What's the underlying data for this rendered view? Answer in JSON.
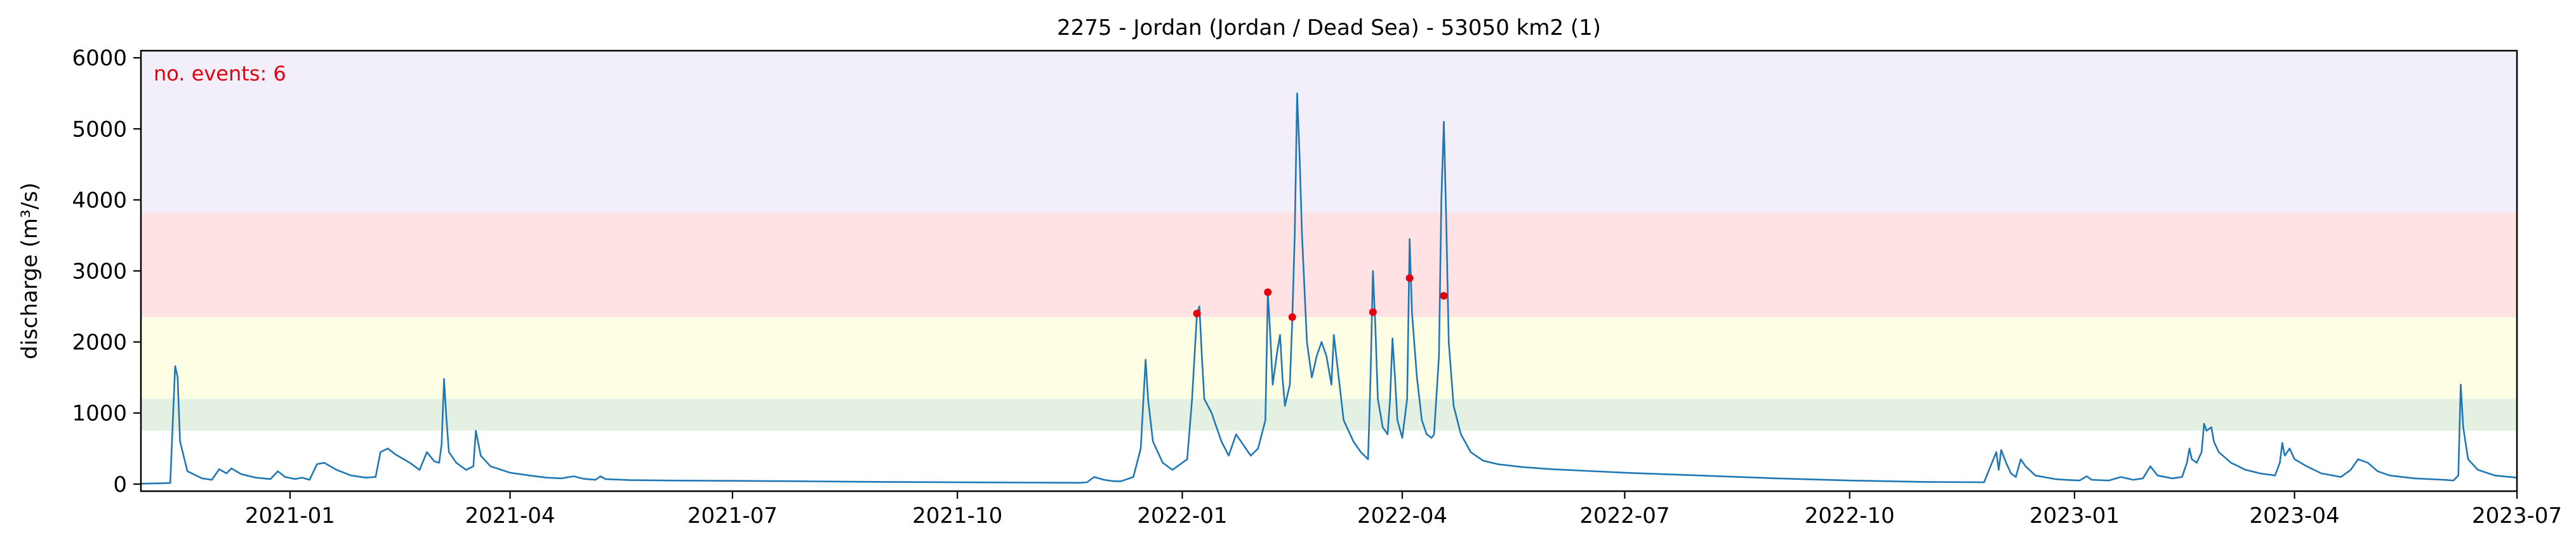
{
  "chart_data": {
    "type": "line",
    "title": "2275 - Jordan (Jordan / Dead Sea) - 53050 km2 (1)",
    "xlabel": "",
    "ylabel": "discharge (m³/s)",
    "annotation": "no. events: 6",
    "xlim": [
      "2020-11-01",
      "2023-07-01"
    ],
    "ylim": [
      -100,
      6100
    ],
    "y_ticks": [
      0,
      1000,
      2000,
      3000,
      4000,
      5000,
      6000
    ],
    "x_ticks": [
      "2021-01",
      "2021-04",
      "2021-07",
      "2021-10",
      "2022-01",
      "2022-04",
      "2022-07",
      "2022-10",
      "2023-01",
      "2023-04",
      "2023-07"
    ],
    "grid": false,
    "legend": "none",
    "threshold_bands": [
      {
        "from": 750,
        "to": 1200,
        "color": "#e4f1e2"
      },
      {
        "from": 1200,
        "to": 2350,
        "color": "#fefee5"
      },
      {
        "from": 2350,
        "to": 3820,
        "color": "#fee2e4"
      },
      {
        "from": 3820,
        "to": 6100,
        "color": "#f2eefa"
      }
    ],
    "series": [
      {
        "color": "#1f77b4",
        "points": [
          [
            "2020-11-01",
            5
          ],
          [
            "2020-11-08",
            10
          ],
          [
            "2020-11-13",
            15
          ],
          [
            "2020-11-15",
            1660
          ],
          [
            "2020-11-16",
            1500
          ],
          [
            "2020-11-17",
            600
          ],
          [
            "2020-11-20",
            180
          ],
          [
            "2020-11-26",
            80
          ],
          [
            "2020-11-30",
            60
          ],
          [
            "2020-12-03",
            210
          ],
          [
            "2020-12-06",
            150
          ],
          [
            "2020-12-08",
            220
          ],
          [
            "2020-12-12",
            140
          ],
          [
            "2020-12-18",
            90
          ],
          [
            "2020-12-24",
            70
          ],
          [
            "2020-12-27",
            180
          ],
          [
            "2020-12-30",
            100
          ],
          [
            "2021-01-03",
            70
          ],
          [
            "2021-01-06",
            90
          ],
          [
            "2021-01-09",
            60
          ],
          [
            "2021-01-12",
            280
          ],
          [
            "2021-01-15",
            300
          ],
          [
            "2021-01-20",
            200
          ],
          [
            "2021-01-26",
            120
          ],
          [
            "2021-02-01",
            90
          ],
          [
            "2021-02-05",
            100
          ],
          [
            "2021-02-07",
            450
          ],
          [
            "2021-02-10",
            500
          ],
          [
            "2021-02-13",
            420
          ],
          [
            "2021-02-19",
            300
          ],
          [
            "2021-02-23",
            200
          ],
          [
            "2021-02-26",
            450
          ],
          [
            "2021-03-01",
            320
          ],
          [
            "2021-03-03",
            300
          ],
          [
            "2021-03-04",
            560
          ],
          [
            "2021-03-05",
            1480
          ],
          [
            "2021-03-06",
            900
          ],
          [
            "2021-03-07",
            450
          ],
          [
            "2021-03-10",
            300
          ],
          [
            "2021-03-14",
            200
          ],
          [
            "2021-03-17",
            250
          ],
          [
            "2021-03-18",
            750
          ],
          [
            "2021-03-20",
            400
          ],
          [
            "2021-03-24",
            250
          ],
          [
            "2021-04-01",
            160
          ],
          [
            "2021-04-09",
            120
          ],
          [
            "2021-04-16",
            90
          ],
          [
            "2021-04-22",
            80
          ],
          [
            "2021-04-27",
            110
          ],
          [
            "2021-05-01",
            75
          ],
          [
            "2021-05-06",
            60
          ],
          [
            "2021-05-08",
            110
          ],
          [
            "2021-05-10",
            70
          ],
          [
            "2021-05-20",
            55
          ],
          [
            "2021-06-05",
            50
          ],
          [
            "2021-07-01",
            45
          ],
          [
            "2021-08-01",
            38
          ],
          [
            "2021-09-01",
            30
          ],
          [
            "2021-10-01",
            25
          ],
          [
            "2021-11-01",
            20
          ],
          [
            "2021-11-20",
            18
          ],
          [
            "2021-11-23",
            25
          ],
          [
            "2021-11-26",
            100
          ],
          [
            "2021-11-30",
            60
          ],
          [
            "2021-12-04",
            40
          ],
          [
            "2021-12-07",
            40
          ],
          [
            "2021-12-12",
            100
          ],
          [
            "2021-12-15",
            500
          ],
          [
            "2021-12-17",
            1750
          ],
          [
            "2021-12-18",
            1200
          ],
          [
            "2021-12-20",
            600
          ],
          [
            "2021-12-24",
            300
          ],
          [
            "2021-12-28",
            200
          ],
          [
            "2022-01-03",
            350
          ],
          [
            "2022-01-05",
            1200
          ],
          [
            "2022-01-07",
            2400
          ],
          [
            "2022-01-08",
            2500
          ],
          [
            "2022-01-09",
            1800
          ],
          [
            "2022-01-10",
            1200
          ],
          [
            "2022-01-13",
            1000
          ],
          [
            "2022-01-17",
            600
          ],
          [
            "2022-01-20",
            400
          ],
          [
            "2022-01-23",
            700
          ],
          [
            "2022-01-26",
            550
          ],
          [
            "2022-01-29",
            400
          ],
          [
            "2022-02-01",
            500
          ],
          [
            "2022-02-04",
            900
          ],
          [
            "2022-02-05",
            2700
          ],
          [
            "2022-02-06",
            2100
          ],
          [
            "2022-02-07",
            1400
          ],
          [
            "2022-02-09",
            1900
          ],
          [
            "2022-02-10",
            2100
          ],
          [
            "2022-02-11",
            1500
          ],
          [
            "2022-02-12",
            1100
          ],
          [
            "2022-02-14",
            1400
          ],
          [
            "2022-02-15",
            2300
          ],
          [
            "2022-02-16",
            3500
          ],
          [
            "2022-02-17",
            5500
          ],
          [
            "2022-02-18",
            4600
          ],
          [
            "2022-02-19",
            3500
          ],
          [
            "2022-02-21",
            2000
          ],
          [
            "2022-02-23",
            1500
          ],
          [
            "2022-02-25",
            1800
          ],
          [
            "2022-02-27",
            2000
          ],
          [
            "2022-03-01",
            1800
          ],
          [
            "2022-03-03",
            1400
          ],
          [
            "2022-03-04",
            2100
          ],
          [
            "2022-03-06",
            1500
          ],
          [
            "2022-03-08",
            900
          ],
          [
            "2022-03-12",
            600
          ],
          [
            "2022-03-15",
            450
          ],
          [
            "2022-03-18",
            350
          ],
          [
            "2022-03-19",
            1500
          ],
          [
            "2022-03-20",
            3000
          ],
          [
            "2022-03-21",
            2200
          ],
          [
            "2022-03-22",
            1200
          ],
          [
            "2022-03-24",
            800
          ],
          [
            "2022-03-26",
            700
          ],
          [
            "2022-03-27",
            1200
          ],
          [
            "2022-03-28",
            2050
          ],
          [
            "2022-03-29",
            1500
          ],
          [
            "2022-03-30",
            900
          ],
          [
            "2022-04-01",
            650
          ],
          [
            "2022-04-03",
            1200
          ],
          [
            "2022-04-04",
            3450
          ],
          [
            "2022-04-05",
            2400
          ],
          [
            "2022-04-07",
            1500
          ],
          [
            "2022-04-09",
            900
          ],
          [
            "2022-04-11",
            700
          ],
          [
            "2022-04-13",
            650
          ],
          [
            "2022-04-14",
            700
          ],
          [
            "2022-04-16",
            1800
          ],
          [
            "2022-04-17",
            4000
          ],
          [
            "2022-04-18",
            5100
          ],
          [
            "2022-04-19",
            3700
          ],
          [
            "2022-04-20",
            2000
          ],
          [
            "2022-04-22",
            1100
          ],
          [
            "2022-04-25",
            700
          ],
          [
            "2022-04-29",
            450
          ],
          [
            "2022-05-04",
            330
          ],
          [
            "2022-05-10",
            280
          ],
          [
            "2022-05-20",
            240
          ],
          [
            "2022-06-01",
            210
          ],
          [
            "2022-07-01",
            160
          ],
          [
            "2022-08-01",
            120
          ],
          [
            "2022-09-01",
            80
          ],
          [
            "2022-10-01",
            50
          ],
          [
            "2022-11-01",
            30
          ],
          [
            "2022-11-25",
            25
          ],
          [
            "2022-11-30",
            450
          ],
          [
            "2022-12-01",
            200
          ],
          [
            "2022-12-02",
            480
          ],
          [
            "2022-12-04",
            300
          ],
          [
            "2022-12-06",
            150
          ],
          [
            "2022-12-08",
            100
          ],
          [
            "2022-12-10",
            350
          ],
          [
            "2022-12-12",
            250
          ],
          [
            "2022-12-16",
            120
          ],
          [
            "2022-12-24",
            70
          ],
          [
            "2022-12-28",
            60
          ],
          [
            "2023-01-03",
            50
          ],
          [
            "2023-01-06",
            110
          ],
          [
            "2023-01-08",
            60
          ],
          [
            "2023-01-15",
            50
          ],
          [
            "2023-01-20",
            100
          ],
          [
            "2023-01-25",
            60
          ],
          [
            "2023-01-29",
            80
          ],
          [
            "2023-02-01",
            250
          ],
          [
            "2023-02-04",
            120
          ],
          [
            "2023-02-10",
            80
          ],
          [
            "2023-02-14",
            100
          ],
          [
            "2023-02-16",
            300
          ],
          [
            "2023-02-17",
            500
          ],
          [
            "2023-02-18",
            350
          ],
          [
            "2023-02-20",
            300
          ],
          [
            "2023-02-22",
            450
          ],
          [
            "2023-02-23",
            850
          ],
          [
            "2023-02-24",
            750
          ],
          [
            "2023-02-26",
            800
          ],
          [
            "2023-02-27",
            600
          ],
          [
            "2023-03-01",
            450
          ],
          [
            "2023-03-06",
            300
          ],
          [
            "2023-03-12",
            200
          ],
          [
            "2023-03-18",
            150
          ],
          [
            "2023-03-24",
            120
          ],
          [
            "2023-03-26",
            300
          ],
          [
            "2023-03-27",
            580
          ],
          [
            "2023-03-28",
            400
          ],
          [
            "2023-03-30",
            500
          ],
          [
            "2023-04-01",
            350
          ],
          [
            "2023-04-06",
            250
          ],
          [
            "2023-04-12",
            150
          ],
          [
            "2023-04-20",
            100
          ],
          [
            "2023-04-24",
            200
          ],
          [
            "2023-04-27",
            350
          ],
          [
            "2023-05-01",
            300
          ],
          [
            "2023-05-05",
            180
          ],
          [
            "2023-05-10",
            120
          ],
          [
            "2023-05-20",
            80
          ],
          [
            "2023-06-01",
            60
          ],
          [
            "2023-06-05",
            50
          ],
          [
            "2023-06-07",
            120
          ],
          [
            "2023-06-08",
            1400
          ],
          [
            "2023-06-09",
            800
          ],
          [
            "2023-06-11",
            350
          ],
          [
            "2023-06-15",
            200
          ],
          [
            "2023-06-22",
            120
          ],
          [
            "2023-07-01",
            90
          ]
        ]
      }
    ],
    "events": [
      {
        "date": "2022-01-07",
        "value": 2400
      },
      {
        "date": "2022-02-05",
        "value": 2700
      },
      {
        "date": "2022-02-15",
        "value": 2350
      },
      {
        "date": "2022-03-20",
        "value": 2420
      },
      {
        "date": "2022-04-04",
        "value": 2900
      },
      {
        "date": "2022-04-18",
        "value": 2650
      }
    ],
    "event_color": "#e3000f"
  }
}
